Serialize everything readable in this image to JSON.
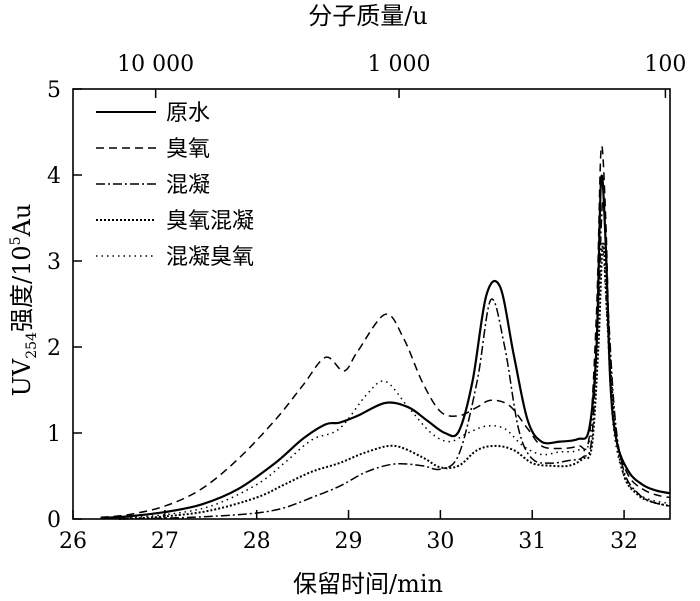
{
  "chart_data": {
    "type": "line",
    "xlabel": "保留时间/min",
    "ylabel": "UV",
    "ylabel_sub": "254",
    "ylabel_rest": "强度/10",
    "ylabel_sup": "5",
    "ylabel_unit": "Au",
    "top_axis_label": "分子质量/u",
    "xlim": [
      26,
      32.5
    ],
    "ylim": [
      0,
      5
    ],
    "x_ticks": [
      "26",
      "27",
      "28",
      "29",
      "30",
      "31",
      "32"
    ],
    "y_ticks": [
      "0",
      "1",
      "2",
      "3",
      "4",
      "5"
    ],
    "top_ticks": [
      {
        "label": "10 000",
        "x": 26.9
      },
      {
        "label": "1 000",
        "x": 29.55
      },
      {
        "label": "100",
        "x": 32.45
      }
    ],
    "legend_position": "top-left",
    "series": [
      {
        "name": "原水",
        "line_style": "solid",
        "x": [
          26.3,
          26.6,
          27.0,
          27.4,
          27.8,
          28.2,
          28.5,
          28.75,
          28.9,
          29.1,
          29.4,
          29.65,
          29.85,
          30.05,
          30.2,
          30.35,
          30.5,
          30.65,
          30.8,
          30.95,
          31.1,
          31.3,
          31.5,
          31.62,
          31.7,
          31.75,
          31.8,
          31.85,
          31.92,
          32.05,
          32.2,
          32.35,
          32.5
        ],
        "y": [
          0.01,
          0.03,
          0.08,
          0.17,
          0.35,
          0.65,
          0.93,
          1.1,
          1.12,
          1.2,
          1.35,
          1.3,
          1.15,
          1.0,
          1.02,
          1.6,
          2.6,
          2.7,
          1.9,
          1.15,
          0.9,
          0.9,
          0.93,
          1.05,
          2.0,
          3.95,
          3.2,
          1.6,
          0.9,
          0.55,
          0.4,
          0.33,
          0.3
        ]
      },
      {
        "name": "臭氧",
        "line_style": "dashed",
        "x": [
          26.3,
          26.6,
          27.0,
          27.4,
          27.8,
          28.2,
          28.5,
          28.75,
          28.95,
          29.1,
          29.4,
          29.6,
          29.8,
          30.0,
          30.2,
          30.4,
          30.55,
          30.75,
          30.95,
          31.1,
          31.3,
          31.5,
          31.62,
          31.7,
          31.75,
          31.8,
          31.85,
          31.92,
          32.05,
          32.2,
          32.35,
          32.5
        ],
        "y": [
          0.02,
          0.05,
          0.15,
          0.35,
          0.7,
          1.15,
          1.55,
          1.88,
          1.72,
          1.95,
          2.38,
          2.1,
          1.6,
          1.25,
          1.2,
          1.3,
          1.38,
          1.32,
          1.05,
          0.85,
          0.82,
          0.85,
          0.95,
          2.4,
          4.3,
          3.5,
          1.7,
          0.9,
          0.5,
          0.35,
          0.28,
          0.25
        ]
      },
      {
        "name": "混凝",
        "line_style": "dashdot",
        "x": [
          26.5,
          27.0,
          27.5,
          28.0,
          28.3,
          28.6,
          28.9,
          29.2,
          29.5,
          29.8,
          30.0,
          30.2,
          30.4,
          30.55,
          30.7,
          30.85,
          31.0,
          31.2,
          31.4,
          31.55,
          31.65,
          31.72,
          31.77,
          31.82,
          31.9,
          32.0,
          32.15,
          32.3,
          32.5
        ],
        "y": [
          0.0,
          0.01,
          0.03,
          0.07,
          0.13,
          0.25,
          0.38,
          0.55,
          0.64,
          0.62,
          0.58,
          0.75,
          1.6,
          2.55,
          2.0,
          1.05,
          0.7,
          0.65,
          0.68,
          0.72,
          0.95,
          2.5,
          3.7,
          2.6,
          1.2,
          0.55,
          0.3,
          0.2,
          0.15
        ]
      },
      {
        "name": "臭氧混凝",
        "line_style": "dense-dotted",
        "x": [
          26.5,
          27.0,
          27.5,
          28.0,
          28.3,
          28.6,
          28.9,
          29.2,
          29.5,
          29.8,
          30.0,
          30.2,
          30.4,
          30.6,
          30.8,
          31.0,
          31.2,
          31.4,
          31.55,
          31.65,
          31.72,
          31.77,
          31.82,
          31.9,
          32.0,
          32.15,
          32.3,
          32.5
        ],
        "y": [
          0.0,
          0.03,
          0.1,
          0.25,
          0.4,
          0.55,
          0.65,
          0.78,
          0.85,
          0.72,
          0.6,
          0.62,
          0.8,
          0.85,
          0.8,
          0.65,
          0.62,
          0.62,
          0.7,
          0.85,
          2.0,
          3.2,
          2.3,
          1.1,
          0.5,
          0.28,
          0.2,
          0.15
        ]
      },
      {
        "name": "混凝臭氧",
        "line_style": "sparse-dotted",
        "x": [
          26.5,
          27.0,
          27.5,
          28.0,
          28.3,
          28.6,
          28.9,
          29.2,
          29.4,
          29.65,
          29.9,
          30.1,
          30.3,
          30.5,
          30.7,
          30.9,
          31.1,
          31.3,
          31.5,
          31.63,
          31.71,
          31.76,
          31.81,
          31.88,
          32.0,
          32.15,
          32.3,
          32.5
        ],
        "y": [
          0.01,
          0.05,
          0.15,
          0.4,
          0.65,
          0.92,
          1.05,
          1.45,
          1.6,
          1.3,
          1.0,
          0.9,
          1.0,
          1.08,
          1.05,
          0.85,
          0.75,
          0.78,
          0.8,
          0.95,
          2.2,
          3.2,
          2.4,
          1.1,
          0.5,
          0.3,
          0.22,
          0.18
        ]
      }
    ]
  }
}
